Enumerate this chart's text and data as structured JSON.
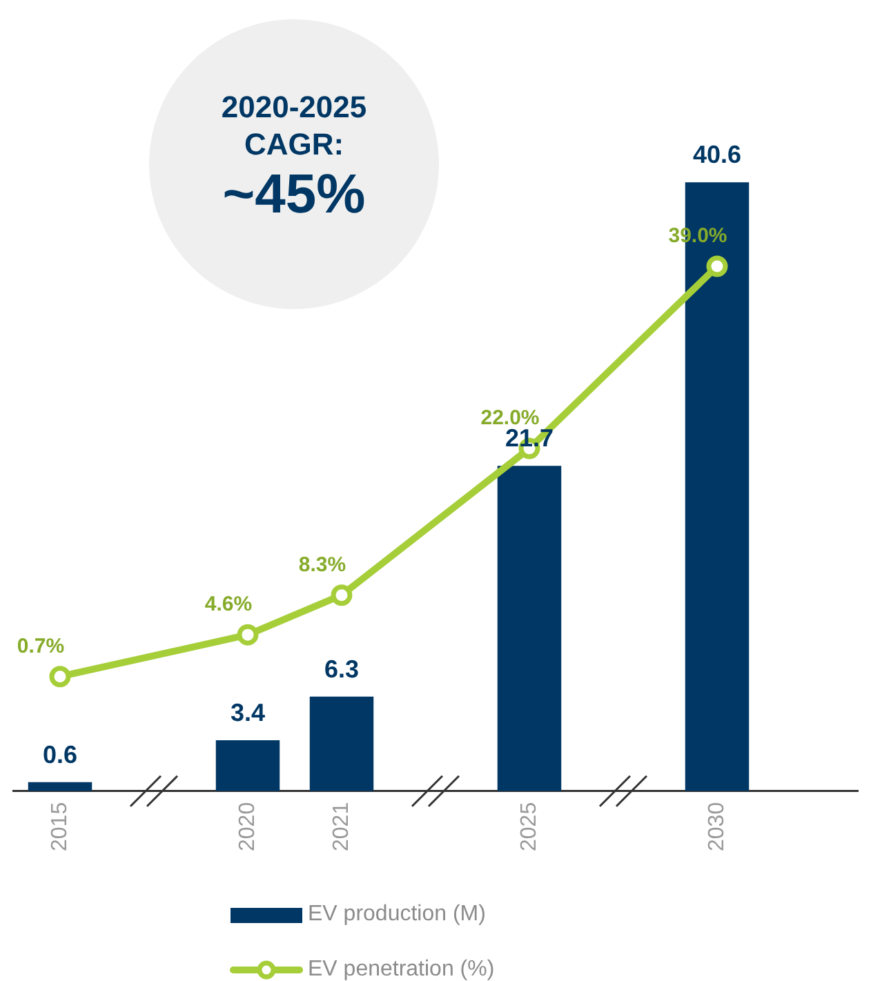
{
  "chart_data": {
    "type": "bar",
    "categories": [
      "2015",
      null,
      "2020",
      "2021",
      null,
      "2025",
      null,
      "2030",
      null
    ],
    "series": [
      {
        "name": "EV production (M)",
        "color": "#003764",
        "values": [
          0.6,
          null,
          3.4,
          6.3,
          null,
          21.7,
          null,
          40.6,
          null
        ],
        "value_labels": [
          "0.6",
          null,
          "3.4",
          "6.3",
          null,
          "21.7",
          null,
          "40.6",
          null
        ]
      },
      {
        "name": "EV penetration (%)",
        "type": "line",
        "axis": "y2",
        "color": "#a6ce39",
        "values": [
          0.7,
          null,
          4.6,
          8.3,
          null,
          22.0,
          null,
          39.0,
          null
        ],
        "value_labels": [
          "0.7%",
          null,
          "4.6%",
          "8.3%",
          null,
          "22.0%",
          null,
          "39.0%",
          null
        ]
      }
    ],
    "tick_labels": "x",
    "grid": false,
    "legend": "bottom",
    "marker": "circle",
    "line_style": "solid",
    "annotations": [
      "2020-2025 CAGR:",
      "~45%"
    ]
  }
}
